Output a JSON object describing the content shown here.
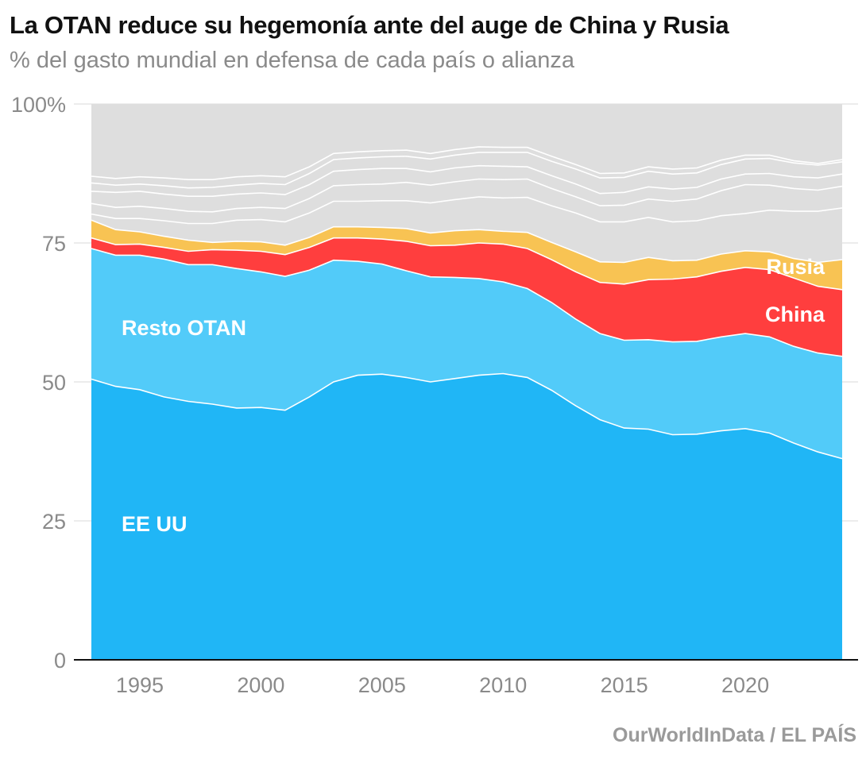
{
  "title": "La OTAN reduce su hegemonía ante del auge de China y Rusia",
  "subtitle": "% del gasto mundial en defensa de cada país o alianza",
  "source": "OurWorldInData / EL PAÍS",
  "chart_data": {
    "type": "area",
    "stacked": true,
    "x": [
      1993,
      1994,
      1995,
      1996,
      1997,
      1998,
      1999,
      2000,
      2001,
      2002,
      2003,
      2004,
      2005,
      2006,
      2007,
      2008,
      2009,
      2010,
      2011,
      2012,
      2013,
      2014,
      2015,
      2016,
      2017,
      2018,
      2019,
      2020,
      2021,
      2022,
      2023,
      2024
    ],
    "xticks": [
      1995,
      2000,
      2005,
      2010,
      2015,
      2020
    ],
    "ylim": [
      0,
      100
    ],
    "yticks": [
      0,
      25,
      50,
      75,
      100
    ],
    "ytick_labels": [
      "0",
      "25",
      "50",
      "75",
      "100%"
    ],
    "grid": true,
    "series": [
      {
        "name": "EE UU",
        "color": "#20b6f6",
        "values": [
          50.5,
          49.2,
          48.6,
          47.3,
          46.5,
          46.0,
          45.3,
          45.4,
          44.9,
          47.3,
          50.0,
          51.2,
          51.4,
          50.8,
          50.0,
          50.6,
          51.2,
          51.5,
          50.8,
          48.5,
          45.7,
          43.2,
          41.7,
          41.5,
          40.5,
          40.6,
          41.2,
          41.6,
          40.8,
          39.0,
          37.4,
          36.2
        ]
      },
      {
        "name": "Resto OTAN",
        "color": "#52cbf9",
        "values": [
          23.5,
          23.6,
          24.2,
          24.8,
          24.6,
          25.1,
          25.1,
          24.4,
          24.1,
          22.8,
          21.9,
          20.5,
          19.8,
          19.2,
          18.9,
          18.2,
          17.4,
          16.5,
          16.0,
          15.8,
          15.6,
          15.5,
          15.8,
          16.1,
          16.7,
          16.7,
          16.9,
          17.1,
          17.3,
          17.4,
          17.8,
          18.4
        ]
      },
      {
        "name": "China",
        "color": "#ff3e3e",
        "values": [
          1.9,
          1.9,
          2.0,
          2.1,
          2.4,
          2.7,
          3.3,
          3.7,
          3.9,
          4.1,
          4.0,
          4.2,
          4.5,
          5.3,
          5.6,
          5.8,
          6.4,
          6.8,
          7.2,
          7.7,
          8.5,
          9.2,
          10.1,
          10.8,
          11.3,
          11.6,
          11.8,
          11.9,
          12.1,
          12.3,
          12.0,
          12.0
        ]
      },
      {
        "name": "Rusia",
        "color": "#f8c353",
        "values": [
          3.2,
          2.7,
          2.2,
          2.0,
          2.0,
          1.3,
          1.6,
          1.7,
          1.7,
          1.8,
          2.0,
          2.0,
          2.1,
          2.3,
          2.3,
          2.6,
          2.4,
          2.3,
          2.9,
          3.1,
          3.6,
          3.7,
          3.9,
          4.0,
          3.3,
          3.0,
          3.1,
          3.0,
          3.2,
          3.5,
          4.3,
          5.4
        ]
      },
      {
        "name": "",
        "color": "#dedede",
        "values": [
          20.9,
          22.6,
          23.0,
          23.8,
          24.5,
          24.9,
          24.7,
          24.8,
          25.4,
          24.0,
          22.1,
          22.1,
          22.2,
          22.4,
          23.2,
          22.8,
          22.6,
          22.9,
          23.1,
          24.9,
          26.6,
          28.4,
          28.5,
          27.6,
          28.2,
          28.1,
          27.0,
          26.4,
          26.6,
          27.8,
          28.5,
          28.0
        ]
      }
    ],
    "inner_lines": [
      [
        1.1,
        2.0,
        2.4,
        2.8,
        3.0,
        3.4,
        3.8,
        4.0,
        4.2,
        4.4,
        4.6,
        4.6,
        4.8,
        5.0,
        5.4,
        5.6,
        5.9,
        6.0,
        6.3,
        6.6,
        7.0,
        7.2,
        7.3,
        7.2,
        7.0,
        7.1,
        6.9,
        6.7,
        7.5,
        8.5,
        9.2,
        9.3
      ],
      [
        3.0,
        4.0,
        4.6,
        5.0,
        5.2,
        5.5,
        5.9,
        6.2,
        6.6,
        7.0,
        7.4,
        7.6,
        7.8,
        8.3,
        8.6,
        8.8,
        9.1,
        9.3,
        9.6,
        9.7,
        9.9,
        10.1,
        10.3,
        10.5,
        10.7,
        11.0,
        11.4,
        11.9,
        12.0,
        12.6,
        13.0,
        13.2
      ],
      [
        5.2,
        6.7,
        7.3,
        7.6,
        7.9,
        8.3,
        8.5,
        8.8,
        9.1,
        9.5,
        10.0,
        10.3,
        10.6,
        10.8,
        11.0,
        11.3,
        11.5,
        11.7,
        11.8,
        12.0,
        12.2,
        12.3,
        12.6,
        12.7,
        12.9,
        13.1,
        13.5,
        13.8,
        14.1,
        14.7,
        15.2,
        15.4
      ],
      [
        6.7,
        8.0,
        8.6,
        9.1,
        9.4,
        9.9,
        10.1,
        10.5,
        10.9,
        11.5,
        12.1,
        12.4,
        12.7,
        13.0,
        13.3,
        13.6,
        13.9,
        14.2,
        14.4,
        14.6,
        14.9,
        15.1,
        15.3,
        15.5,
        15.6,
        15.7,
        16.1,
        16.5,
        16.8,
        17.2,
        17.5,
        17.6
      ],
      [
        7.9,
        9.2,
        9.9,
        10.5,
        10.9,
        11.3,
        11.6,
        11.9,
        12.3,
        12.7,
        13.2,
        13.5,
        13.8,
        14.1,
        14.3,
        14.6,
        14.9,
        15.1,
        15.3,
        15.5,
        15.7,
        15.9,
        16.1,
        16.3,
        16.5,
        16.6,
        16.9,
        17.2,
        17.4,
        17.6,
        17.8,
        18.0
      ]
    ],
    "annotations": [
      {
        "text": "Resto OTAN",
        "series": "Resto OTAN"
      },
      {
        "text": "EE UU",
        "series": "EE UU"
      },
      {
        "text": "China",
        "series": "China"
      },
      {
        "text": "Rusia",
        "series": "Rusia"
      }
    ]
  }
}
